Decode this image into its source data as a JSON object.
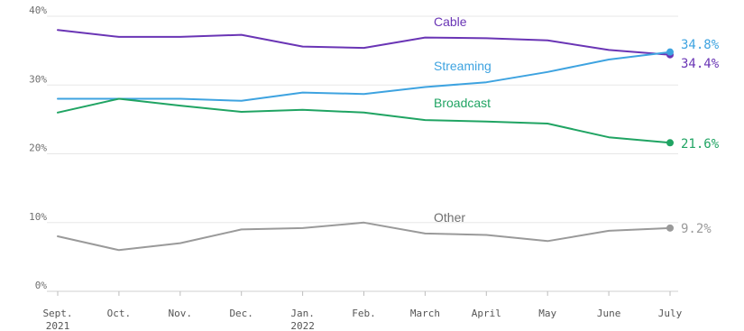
{
  "chart_data": {
    "type": "line",
    "categories": [
      "Sept.",
      "Oct.",
      "Nov.",
      "Dec.",
      "Jan.",
      "Feb.",
      "March",
      "April",
      "May",
      "June",
      "July"
    ],
    "category_sublabels": [
      "2021",
      "",
      "",
      "",
      "2022",
      "",
      "",
      "",
      "",
      "",
      ""
    ],
    "y_ticks": [
      "0%",
      "10%",
      "20%",
      "30%",
      "40%"
    ],
    "ylim": [
      0,
      40
    ],
    "grid": true,
    "series": [
      {
        "name": "Cable",
        "color": "#6a35b5",
        "values": [
          38.0,
          37.0,
          37.0,
          37.3,
          35.6,
          35.4,
          36.9,
          36.8,
          36.5,
          35.1,
          34.4
        ],
        "end_label": "34.4%"
      },
      {
        "name": "Streaming",
        "color": "#3ea3e0",
        "values": [
          28.0,
          28.0,
          28.0,
          27.7,
          28.9,
          28.7,
          29.7,
          30.4,
          31.9,
          33.7,
          34.8
        ],
        "end_label": "34.8%"
      },
      {
        "name": "Broadcast",
        "color": "#20a463",
        "values": [
          26.0,
          28.0,
          27.0,
          26.1,
          26.4,
          26.0,
          24.9,
          24.7,
          24.4,
          22.4,
          21.6
        ],
        "end_label": "21.6%"
      },
      {
        "name": "Other",
        "color": "#9a9a9a",
        "values": [
          8.0,
          6.0,
          7.0,
          9.0,
          9.2,
          10.0,
          8.4,
          8.2,
          7.3,
          8.8,
          9.2
        ],
        "end_label": "9.2%"
      }
    ]
  }
}
